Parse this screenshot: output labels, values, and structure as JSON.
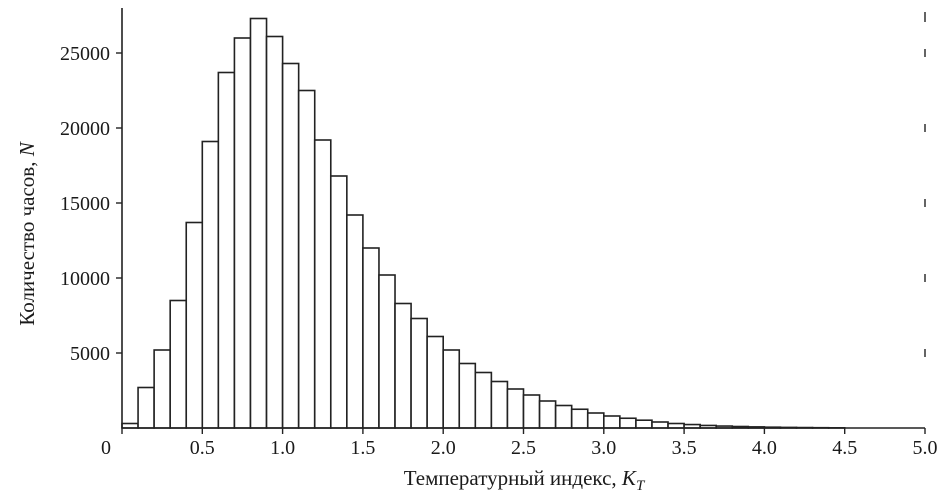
{
  "chart_data": {
    "type": "bar",
    "title": "",
    "xlabel_text": "Температурный индекс, ",
    "xlabel_var": "K",
    "xlabel_sub": "T",
    "ylabel_text": "Количество часов, ",
    "ylabel_var": "N",
    "bin_width": 0.1,
    "bin_starts": [
      0.0,
      0.1,
      0.2,
      0.3,
      0.4,
      0.5,
      0.6,
      0.7,
      0.8,
      0.9,
      1.0,
      1.1,
      1.2,
      1.3,
      1.4,
      1.5,
      1.6,
      1.7,
      1.8,
      1.9,
      2.0,
      2.1,
      2.2,
      2.3,
      2.4,
      2.5,
      2.6,
      2.7,
      2.8,
      2.9,
      3.0,
      3.1,
      3.2,
      3.3,
      3.4,
      3.5,
      3.6,
      3.7,
      3.8,
      3.9,
      4.0,
      4.1,
      4.2,
      4.3,
      4.4
    ],
    "values": [
      300,
      2700,
      5200,
      8500,
      13700,
      19100,
      23700,
      26000,
      27300,
      26100,
      24300,
      22500,
      19200,
      16800,
      14200,
      12000,
      10200,
      8300,
      7300,
      6100,
      5200,
      4300,
      3700,
      3100,
      2600,
      2200,
      1800,
      1500,
      1250,
      1000,
      800,
      650,
      520,
      400,
      300,
      230,
      170,
      130,
      100,
      75,
      55,
      40,
      30,
      20,
      12
    ],
    "xlim": [
      0,
      5.0
    ],
    "ylim": [
      0,
      28000
    ],
    "x_ticks": [
      0,
      0.5,
      1.0,
      1.5,
      2.0,
      2.5,
      3.0,
      3.5,
      4.0,
      4.5,
      5.0
    ],
    "x_tick_labels": [
      "0",
      "0.5",
      "1.0",
      "1.5",
      "2.0",
      "2.5",
      "3.0",
      "3.5",
      "4.0",
      "4.5",
      "5.0"
    ],
    "y_ticks": [
      5000,
      10000,
      15000,
      20000,
      25000
    ],
    "y_tick_labels": [
      "5000",
      "10000",
      "15000",
      "20000",
      "25000"
    ],
    "grid": false,
    "legend": "none"
  }
}
